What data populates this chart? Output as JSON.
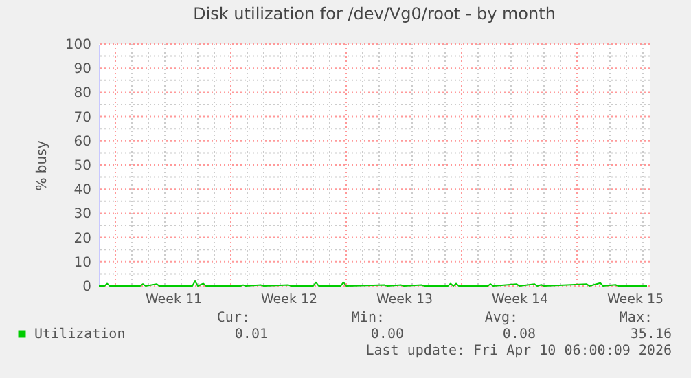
{
  "chart_data": {
    "type": "line",
    "title": "Disk utilization for /dev/Vg0/root - by month",
    "ylabel": "% busy",
    "x": [
      "2026-03-08T00:00",
      "2026-03-08T08:00",
      "2026-03-08T12:00",
      "2026-03-08T16:00",
      "2026-03-10T12:00",
      "2026-03-10T16:00",
      "2026-03-10T20:00",
      "2026-03-11T12:00",
      "2026-03-11T16:00",
      "2026-03-13T16:00",
      "2026-03-13T20:00",
      "2026-03-14T00:00",
      "2026-03-14T08:00",
      "2026-03-14T12:00",
      "2026-03-16T14:00",
      "2026-03-16T18:00",
      "2026-03-16T22:00",
      "2026-03-17T20:00",
      "2026-03-18T00:00",
      "2026-03-19T12:00",
      "2026-03-19T16:00",
      "2026-03-21T00:00",
      "2026-03-21T04:00",
      "2026-03-21T08:00",
      "2026-03-22T16:00",
      "2026-03-22T20:00",
      "2026-03-23T00:00",
      "2026-03-25T08:00",
      "2026-03-25T12:00",
      "2026-03-26T08:00",
      "2026-03-26T12:00",
      "2026-03-27T14:00",
      "2026-03-27T18:00",
      "2026-03-29T04:00",
      "2026-03-29T08:00",
      "2026-03-29T12:00",
      "2026-03-29T16:00",
      "2026-03-29T20:00",
      "2026-03-31T14:00",
      "2026-03-31T18:00",
      "2026-03-31T22:00",
      "2026-04-02T08:00",
      "2026-04-02T12:00",
      "2026-04-03T10:00",
      "2026-04-03T14:00",
      "2026-04-03T20:00",
      "2026-04-04T00:00",
      "2026-04-06T14:00",
      "2026-04-06T18:00",
      "2026-04-07T10:00",
      "2026-04-07T14:00",
      "2026-04-08T08:00",
      "2026-04-08T12:00",
      "2026-04-10T06:00"
    ],
    "series": [
      {
        "name": "Utilization",
        "color": "#00cc00",
        "values": [
          0,
          0,
          1.0,
          0,
          0,
          0.8,
          0,
          0.8,
          0,
          0,
          2.0,
          0,
          1.0,
          0,
          0,
          0.4,
          0,
          0.4,
          0,
          0.4,
          0,
          0,
          1.5,
          0,
          0,
          1.5,
          0,
          0.4,
          0,
          0.4,
          0,
          0.4,
          0,
          0,
          1.0,
          0,
          1.0,
          0,
          0,
          0.8,
          0,
          0.8,
          0,
          0.8,
          0,
          0.5,
          0,
          0.8,
          0,
          1.2,
          0,
          0.5,
          0,
          0.01
        ]
      }
    ],
    "xlim": [
      "2026-03-08T00:00",
      "2026-04-10T10:00"
    ],
    "xticks": [
      {
        "value": "2026-03-12T12:00",
        "label": "Week 11"
      },
      {
        "value": "2026-03-19T12:00",
        "label": "Week 12"
      },
      {
        "value": "2026-03-26T12:00",
        "label": "Week 13"
      },
      {
        "value": "2026-04-02T12:00",
        "label": "Week 14"
      },
      {
        "value": "2026-04-09T12:00",
        "label": "Week 15"
      },
      {
        "value": "2026-03-10",
        "label": null
      },
      {
        "value": "2026-03-11",
        "label": null
      },
      {
        "value": "2026-03-12",
        "label": null
      },
      {
        "value": "2026-03-13",
        "label": null
      },
      {
        "value": "2026-03-14",
        "label": null
      },
      {
        "value": "2026-03-15",
        "label": null
      },
      {
        "value": "2026-03-17",
        "label": null
      },
      {
        "value": "2026-03-18",
        "label": null
      },
      {
        "value": "2026-03-19",
        "label": null
      },
      {
        "value": "2026-03-20",
        "label": null
      },
      {
        "value": "2026-03-21",
        "label": null
      },
      {
        "value": "2026-03-22",
        "label": null
      },
      {
        "value": "2026-03-24",
        "label": null
      },
      {
        "value": "2026-03-25",
        "label": null
      },
      {
        "value": "2026-03-26",
        "label": null
      },
      {
        "value": "2026-03-27",
        "label": null
      },
      {
        "value": "2026-03-28",
        "label": null
      },
      {
        "value": "2026-03-29",
        "label": null
      },
      {
        "value": "2026-03-31",
        "label": null
      },
      {
        "value": "2026-04-01",
        "label": null
      },
      {
        "value": "2026-04-02",
        "label": null
      },
      {
        "value": "2026-04-03",
        "label": null
      },
      {
        "value": "2026-04-04",
        "label": null
      },
      {
        "value": "2026-04-05",
        "label": null
      },
      {
        "value": "2026-04-07",
        "label": null
      },
      {
        "value": "2026-04-08",
        "label": null
      },
      {
        "value": "2026-04-09",
        "label": null
      },
      {
        "value": "2026-04-10",
        "label": null
      }
    ],
    "ylim": [
      0,
      100
    ],
    "yticks": [
      0,
      10,
      20,
      30,
      40,
      50,
      60,
      70,
      80,
      90,
      100,
      {
        "value": 5,
        "label": null
      },
      {
        "value": 15,
        "label": null
      },
      {
        "value": 25,
        "label": null
      },
      {
        "value": 35,
        "label": null
      },
      {
        "value": 45,
        "label": null
      },
      {
        "value": 55,
        "label": null
      },
      {
        "value": 65,
        "label": null
      },
      {
        "value": 75,
        "label": null
      },
      {
        "value": 85,
        "label": null
      },
      {
        "value": 95,
        "label": null
      }
    ],
    "ref_lines": [
      {
        "axis": "x",
        "value": "2026-03-09",
        "label": null,
        "color": "#ff9999",
        "line_style": "dotted"
      },
      {
        "axis": "x",
        "value": "2026-03-16",
        "label": null,
        "color": "#ff9999",
        "line_style": "dotted"
      },
      {
        "axis": "x",
        "value": "2026-03-23",
        "label": null,
        "color": "#ff9999",
        "line_style": "dotted"
      },
      {
        "axis": "x",
        "value": "2026-03-30",
        "label": null,
        "color": "#ff9999",
        "line_style": "dotted"
      },
      {
        "axis": "x",
        "value": "2026-04-06",
        "label": null,
        "color": "#ff9999",
        "line_style": "dotted"
      }
    ],
    "grid": true,
    "legend": "bottom",
    "marker": "none",
    "line_style": "solid",
    "annotations": [
      "Cur:",
      "Min:",
      "Avg:",
      "Max:",
      "0.01",
      "0.00",
      "0.08",
      "35.16",
      "Last update: Fri Apr 10 06:00:09 2026"
    ]
  }
}
